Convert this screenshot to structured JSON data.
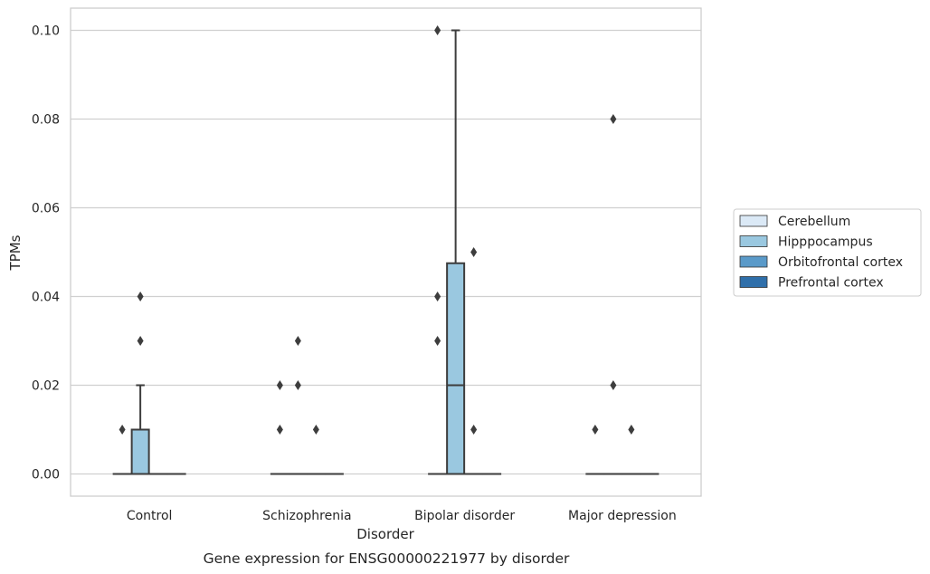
{
  "caption": "Gene expression for ENSG00000221977 by disorder",
  "chart_data": {
    "type": "box",
    "xlabel": "Disorder",
    "ylabel": "TPMs",
    "ylim": [
      -0.005,
      0.105
    ],
    "yticks": [
      0.0,
      0.02,
      0.04,
      0.06,
      0.08,
      0.1
    ],
    "ytick_labels": [
      "0.00",
      "0.02",
      "0.04",
      "0.06",
      "0.08",
      "0.10"
    ],
    "grid": "horizontal",
    "legend_position": "right",
    "categories": [
      "Control",
      "Schizophrenia",
      "Bipolar disorder",
      "Major depression"
    ],
    "series": [
      {
        "name": "Cerebellum",
        "color": "#dbe9f6",
        "boxes": [
          {
            "q1": 0.0,
            "median": 0.0,
            "q3": 0.0,
            "whislo": 0.0,
            "whishi": 0.0,
            "fliers": [
              0.01
            ]
          },
          {
            "q1": 0.0,
            "median": 0.0,
            "q3": 0.0,
            "whislo": 0.0,
            "whishi": 0.0,
            "fliers": [
              0.01,
              0.02
            ]
          },
          {
            "q1": 0.0,
            "median": 0.0,
            "q3": 0.0,
            "whislo": 0.0,
            "whishi": 0.0,
            "fliers": [
              0.03,
              0.04,
              0.1
            ]
          },
          {
            "q1": 0.0,
            "median": 0.0,
            "q3": 0.0,
            "whislo": 0.0,
            "whishi": 0.0,
            "fliers": [
              0.01
            ]
          }
        ]
      },
      {
        "name": "Hipppocampus",
        "color": "#9ac8e0",
        "boxes": [
          {
            "q1": 0.0,
            "median": 0.0,
            "q3": 0.01,
            "whislo": 0.0,
            "whishi": 0.02,
            "fliers": [
              0.03,
              0.04
            ]
          },
          {
            "q1": 0.0,
            "median": 0.0,
            "q3": 0.0,
            "whislo": 0.0,
            "whishi": 0.0,
            "fliers": [
              0.02,
              0.03
            ]
          },
          {
            "q1": 0.0,
            "median": 0.02,
            "q3": 0.0475,
            "whislo": 0.0,
            "whishi": 0.1,
            "fliers": []
          },
          {
            "q1": 0.0,
            "median": 0.0,
            "q3": 0.0,
            "whislo": 0.0,
            "whishi": 0.0,
            "fliers": [
              0.08,
              0.02
            ]
          }
        ]
      },
      {
        "name": "Orbitofrontal cortex",
        "color": "#5a9ac9",
        "boxes": [
          {
            "q1": 0.0,
            "median": 0.0,
            "q3": 0.0,
            "whislo": 0.0,
            "whishi": 0.0,
            "fliers": []
          },
          {
            "q1": 0.0,
            "median": 0.0,
            "q3": 0.0,
            "whislo": 0.0,
            "whishi": 0.0,
            "fliers": [
              0.01
            ]
          },
          {
            "q1": 0.0,
            "median": 0.0,
            "q3": 0.0,
            "whislo": 0.0,
            "whishi": 0.0,
            "fliers": [
              0.01,
              0.05
            ]
          },
          {
            "q1": 0.0,
            "median": 0.0,
            "q3": 0.0,
            "whislo": 0.0,
            "whishi": 0.0,
            "fliers": [
              0.01
            ]
          }
        ]
      },
      {
        "name": "Prefrontal cortex",
        "color": "#2f6faa",
        "boxes": [
          {
            "q1": 0.0,
            "median": 0.0,
            "q3": 0.0,
            "whislo": 0.0,
            "whishi": 0.0,
            "fliers": []
          },
          {
            "q1": 0.0,
            "median": 0.0,
            "q3": 0.0,
            "whislo": 0.0,
            "whishi": 0.0,
            "fliers": []
          },
          {
            "q1": 0.0,
            "median": 0.0,
            "q3": 0.0,
            "whislo": 0.0,
            "whishi": 0.0,
            "fliers": []
          },
          {
            "q1": 0.0,
            "median": 0.0,
            "q3": 0.0,
            "whislo": 0.0,
            "whishi": 0.0,
            "fliers": []
          }
        ]
      }
    ]
  }
}
